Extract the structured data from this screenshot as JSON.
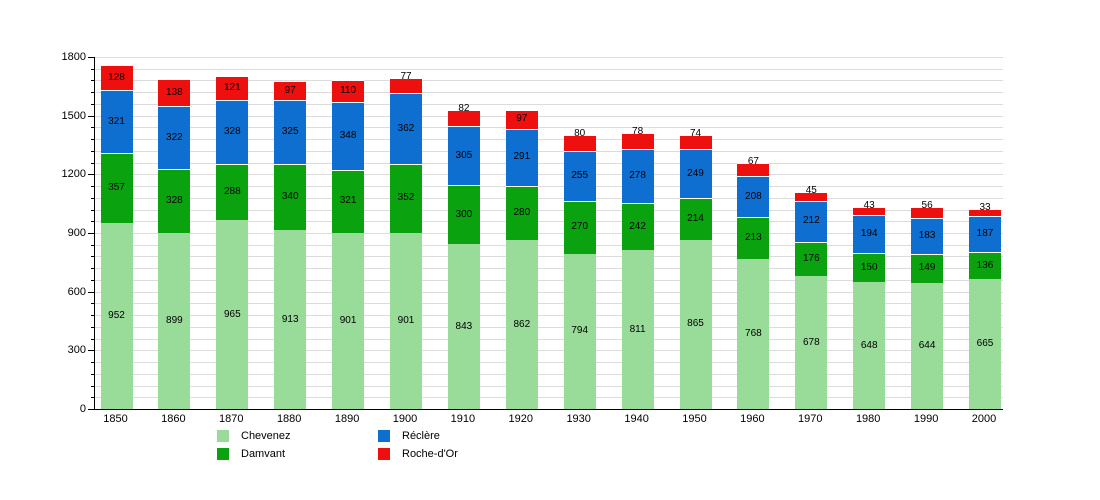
{
  "chart_data": {
    "type": "bar",
    "stacked": true,
    "title": "",
    "xlabel": "",
    "ylabel": "",
    "categories": [
      "1850",
      "1860",
      "1870",
      "1880",
      "1890",
      "1900",
      "1910",
      "1920",
      "1930",
      "1940",
      "1950",
      "1960",
      "1970",
      "1980",
      "1990",
      "2000"
    ],
    "series": [
      {
        "name": "Chevenez",
        "color": "#99db99",
        "values": [
          952,
          899,
          965,
          913,
          901,
          901,
          843,
          862,
          794,
          811,
          865,
          768,
          678,
          648,
          644,
          665
        ]
      },
      {
        "name": "Damvant",
        "color": "#0aa30f",
        "values": [
          357,
          328,
          288,
          340,
          321,
          352,
          300,
          280,
          270,
          242,
          214,
          213,
          176,
          150,
          149,
          136
        ]
      },
      {
        "name": "Réclère",
        "color": "#0e6fd0",
        "values": [
          321,
          322,
          328,
          325,
          348,
          362,
          305,
          291,
          255,
          278,
          249,
          208,
          212,
          194,
          183,
          187
        ]
      },
      {
        "name": "Roche-d'Or",
        "color": "#ee0f0f",
        "values": [
          128,
          138,
          121,
          97,
          110,
          77,
          82,
          97,
          80,
          78,
          74,
          67,
          45,
          43,
          56,
          33
        ]
      }
    ],
    "ylim": [
      0,
      1800
    ],
    "ytick_step": 300,
    "ytick_labels": [
      "0",
      "300",
      "600",
      "900",
      "1200",
      "1500",
      "1800"
    ],
    "minor_grid_step": 60,
    "grid": true,
    "legend_position": "bottom"
  }
}
